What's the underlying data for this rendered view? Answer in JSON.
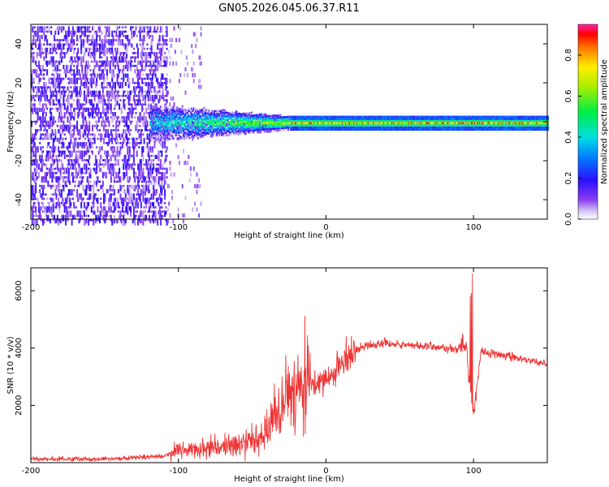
{
  "title": "GN05.2026.045.06.37.R11",
  "chart_data": [
    {
      "type": "heatmap",
      "name": "spectrogram",
      "xlabel": "Height of straight line (km)",
      "ylabel": "Frequency (Hz)",
      "xlim": [
        -200,
        150
      ],
      "ylim": [
        -50,
        50
      ],
      "xticks": [
        "-200",
        "-100",
        "0",
        "100"
      ],
      "yticks": [
        "-40",
        "-20",
        "0",
        "20",
        "40"
      ],
      "colorbar": {
        "label": "Normalized spectral amplitude",
        "range": [
          0,
          0.95
        ],
        "ticks": [
          "0.0",
          "0.2",
          "0.4",
          "0.6",
          "0.8"
        ]
      },
      "features": {
        "noise_region_end_km": -108,
        "sparse_noise_end_km": -85,
        "signal_start_km": -120,
        "converged_km": -25,
        "peak_frequency_hz": 0
      }
    },
    {
      "type": "line",
      "name": "snr",
      "xlabel": "Height of straight line (km)",
      "ylabel": "SNR (10 * v/v)",
      "xlim": [
        -200,
        150
      ],
      "ylim": [
        0,
        6800
      ],
      "xticks": [
        "-200",
        "-100",
        "0",
        "100"
      ],
      "yticks": [
        "2000",
        "4000",
        "6000"
      ],
      "color": "#ee3333",
      "series": [
        {
          "name": "SNR",
          "x": [
            -200,
            -150,
            -110,
            -100,
            -80,
            -60,
            -45,
            -35,
            -25,
            -15,
            -5,
            5,
            15,
            25,
            35,
            45,
            60,
            80,
            90,
            95,
            100,
            105,
            110,
            120,
            130,
            140,
            150
          ],
          "y": [
            120,
            130,
            220,
            400,
            500,
            650,
            950,
            1500,
            2400,
            3000,
            2800,
            3100,
            3700,
            4050,
            4150,
            4150,
            4100,
            4000,
            3950,
            4100,
            1500,
            3900,
            3850,
            3750,
            3650,
            3550,
            3450
          ]
        }
      ],
      "annotations": [
        {
          "x": 98,
          "y": 6700,
          "note": "spike"
        },
        {
          "x": 100,
          "y": 1500,
          "note": "dip"
        }
      ]
    }
  ]
}
